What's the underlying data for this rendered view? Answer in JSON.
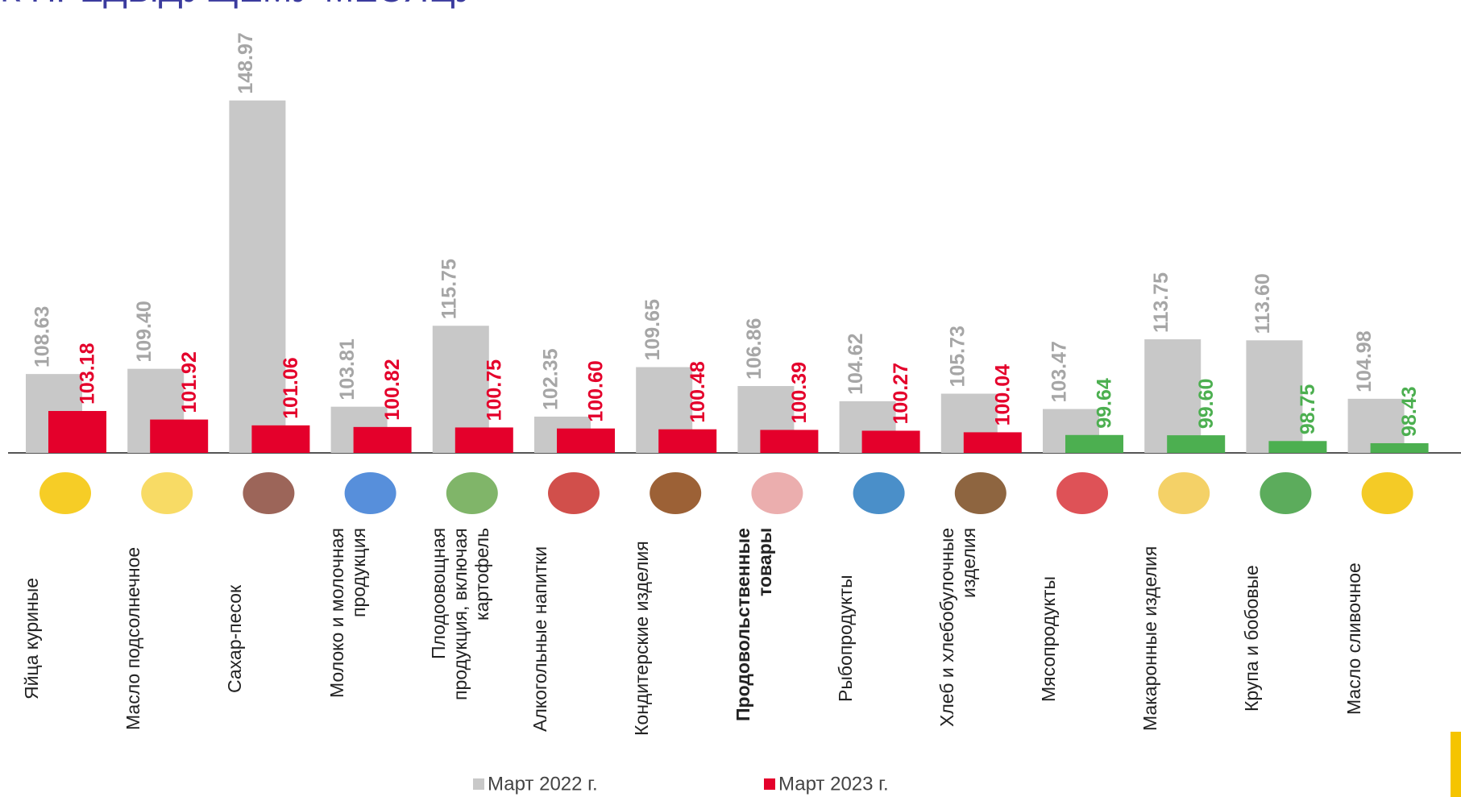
{
  "chart_data": {
    "type": "bar",
    "title": "К ПРЕДЫДУЩЕМУ МЕСЯЦУ",
    "categories": [
      "Яйца куриные",
      "Масло подсолнечное",
      "Сахар-песок",
      "Молоко и молочная продукция",
      "Плодоовощная продукция, включая картофель",
      "Алкогольные напитки",
      "Кондитерские изделия",
      "Продовольственные товары",
      "Рыбопродукты",
      "Хлеб и хлебобулочные изделия",
      "Мясопродукты",
      "Макаронные изделия",
      "Крупа и бобовые",
      "Масло сливочное"
    ],
    "emphasis_index": 7,
    "series": [
      {
        "name": "Март 2022 г.",
        "color": "#c8c8c8",
        "label_color": "#a6a6a6",
        "values": [
          108.63,
          109.4,
          148.97,
          103.81,
          115.75,
          102.35,
          109.65,
          106.86,
          104.62,
          105.73,
          103.47,
          113.75,
          113.6,
          104.98
        ],
        "value_labels": [
          "108.63",
          "109.40",
          "148.97",
          "103.81",
          "115.75",
          "102.35",
          "109.65",
          "106.86",
          "104.62",
          "105.73",
          "103.47",
          "113.75",
          "113.60",
          "104.98"
        ]
      },
      {
        "name": "Март 2023 г.",
        "color": "#e4002b",
        "colors": [
          "#e4002b",
          "#e4002b",
          "#e4002b",
          "#e4002b",
          "#e4002b",
          "#e4002b",
          "#e4002b",
          "#e4002b",
          "#e4002b",
          "#e4002b",
          "#4caf50",
          "#4caf50",
          "#4caf50",
          "#4caf50"
        ],
        "values": [
          103.18,
          101.92,
          101.06,
          100.82,
          100.75,
          100.6,
          100.48,
          100.39,
          100.27,
          100.04,
          99.64,
          99.6,
          98.75,
          98.43
        ],
        "value_labels": [
          "103.18",
          "101.92",
          "101.06",
          "100.82",
          "100.75",
          "100.60",
          "100.48",
          "100.39",
          "100.27",
          "100.04",
          "99.64",
          "99.60",
          "98.75",
          "98.43"
        ]
      }
    ],
    "ylim": [
      97,
      150
    ]
  }
}
